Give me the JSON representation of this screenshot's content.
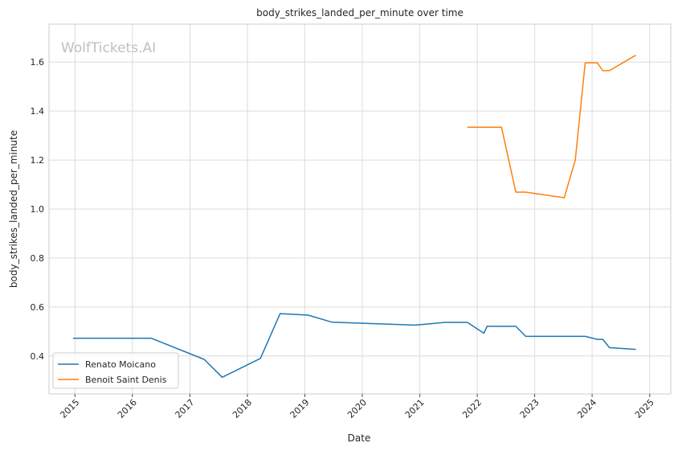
{
  "chart_data": {
    "type": "line",
    "title": "body_strikes_landed_per_minute over time",
    "xlabel": "Date",
    "ylabel": "body_strikes_landed_per_minute",
    "watermark": "WolfTickets.AI",
    "xlim": [
      "2014-07-20",
      "2025-05-15"
    ],
    "ylim": [
      0.245,
      1.755
    ],
    "x_ticks": [
      "2015",
      "2016",
      "2017",
      "2018",
      "2019",
      "2020",
      "2021",
      "2022",
      "2023",
      "2024",
      "2025"
    ],
    "y_ticks": [
      0.4,
      0.6,
      0.8,
      1.0,
      1.2,
      1.4,
      1.6
    ],
    "y_tick_labels": [
      "0.4",
      "0.6",
      "0.8",
      "1.0",
      "1.2",
      "1.4",
      "1.6"
    ],
    "grid": true,
    "legend_position": "lower-left",
    "series": [
      {
        "name": "Renato Moicano",
        "color": "#1f77b4",
        "points": [
          [
            "2014-12-20",
            0.472
          ],
          [
            "2016-05-01",
            0.472
          ],
          [
            "2017-04-01",
            0.386
          ],
          [
            "2017-07-25",
            0.313
          ],
          [
            "2018-03-25",
            0.39
          ],
          [
            "2018-07-28",
            0.573
          ],
          [
            "2019-01-20",
            0.567
          ],
          [
            "2019-06-22",
            0.538
          ],
          [
            "2020-12-05",
            0.526
          ],
          [
            "2021-06-12",
            0.537
          ],
          [
            "2021-10-30",
            0.537
          ],
          [
            "2022-02-12",
            0.493
          ],
          [
            "2022-03-05",
            0.521
          ],
          [
            "2022-09-03",
            0.521
          ],
          [
            "2022-11-05",
            0.48
          ],
          [
            "2023-11-18",
            0.48
          ],
          [
            "2024-02-03",
            0.468
          ],
          [
            "2024-03-09",
            0.468
          ],
          [
            "2024-04-20",
            0.434
          ],
          [
            "2024-10-05",
            0.427
          ]
        ]
      },
      {
        "name": "Benoit Saint Denis",
        "color": "#ff7f0e",
        "points": [
          [
            "2021-10-30",
            1.334
          ],
          [
            "2022-06-04",
            1.334
          ],
          [
            "2022-09-03",
            1.069
          ],
          [
            "2022-11-05",
            1.069
          ],
          [
            "2023-07-08",
            1.046
          ],
          [
            "2023-09-16",
            1.2
          ],
          [
            "2023-11-18",
            1.597
          ],
          [
            "2024-02-03",
            1.597
          ],
          [
            "2024-03-09",
            1.565
          ],
          [
            "2024-04-20",
            1.565
          ],
          [
            "2024-10-05",
            1.628
          ]
        ]
      }
    ]
  }
}
